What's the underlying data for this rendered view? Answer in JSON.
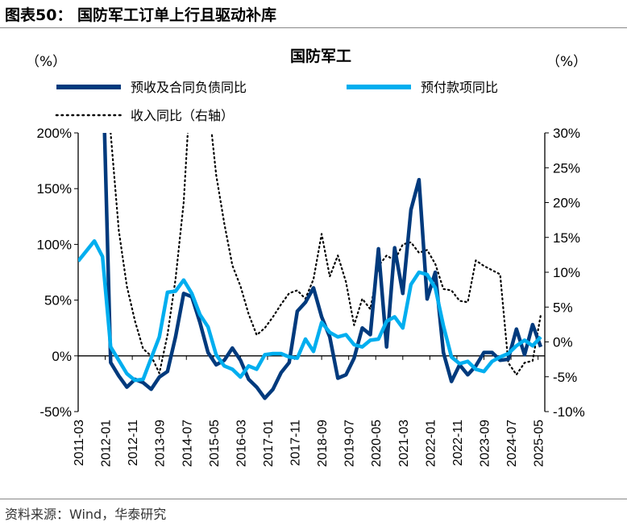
{
  "figure_title": "图表50：  国防军工订单上行且驱动补库",
  "source": "资料来源：Wind，华泰研究",
  "chart_data": {
    "type": "line",
    "title": "国防军工",
    "left_unit": "（%）",
    "right_unit": "（%）",
    "left_ylim": [
      -50,
      200
    ],
    "left_ticks": [
      "200%",
      "150%",
      "100%",
      "50%",
      "0%",
      "-50%"
    ],
    "left_tick_values": [
      200,
      150,
      100,
      50,
      0,
      -50
    ],
    "right_ylim": [
      -10,
      30
    ],
    "right_ticks": [
      "30%",
      "25%",
      "20%",
      "15%",
      "10%",
      "5%",
      "0%",
      "-5%",
      "-10%"
    ],
    "right_tick_values": [
      30,
      25,
      20,
      15,
      10,
      5,
      0,
      -5,
      -10
    ],
    "x_tick_labels": [
      "2011-03",
      "2012-01",
      "2012-11",
      "2013-09",
      "2014-07",
      "2015-05",
      "2016-03",
      "2017-01",
      "2017-11",
      "2018-09",
      "2019-07",
      "2020-05",
      "2021-03",
      "2022-01",
      "2022-11",
      "2023-09",
      "2024-07",
      "2025-05"
    ],
    "x": [
      "2011-03",
      "2011-06",
      "2011-09",
      "2011-12",
      "2012-03",
      "2012-06",
      "2012-09",
      "2012-12",
      "2013-03",
      "2013-06",
      "2013-09",
      "2013-12",
      "2014-03",
      "2014-06",
      "2014-09",
      "2014-12",
      "2015-03",
      "2015-06",
      "2015-09",
      "2015-12",
      "2016-03",
      "2016-06",
      "2016-09",
      "2016-12",
      "2017-03",
      "2017-06",
      "2017-09",
      "2017-12",
      "2018-03",
      "2018-06",
      "2018-09",
      "2018-12",
      "2019-03",
      "2019-06",
      "2019-09",
      "2019-12",
      "2020-03",
      "2020-06",
      "2020-09",
      "2020-12",
      "2021-03",
      "2021-06",
      "2021-09",
      "2021-12",
      "2022-03",
      "2022-06",
      "2022-09",
      "2022-12",
      "2023-03",
      "2023-06",
      "2023-09",
      "2023-12",
      "2024-03",
      "2024-06",
      "2024-09",
      "2024-12",
      "2025-03",
      "2025-06"
    ],
    "series": [
      {
        "name": "预收及合同负债同比",
        "axis": "left",
        "color": "#003A7D",
        "style": "solid",
        "values": [
          null,
          null,
          null,
          270,
          -6,
          -18,
          -28,
          -21,
          -24,
          -30,
          -19,
          -14,
          17,
          56,
          53,
          30,
          3,
          -8,
          -4,
          7,
          -4,
          -21,
          -28,
          -38,
          -30,
          -15,
          -6,
          40,
          48,
          61,
          35,
          17,
          -20,
          -17,
          -2,
          25,
          19,
          96,
          8,
          97,
          56,
          131,
          158,
          51,
          75,
          3,
          -23,
          -8,
          -17,
          -9,
          3,
          3,
          -4,
          -3,
          24,
          1,
          28,
          8
        ]
      },
      {
        "name": "预付款项同比",
        "axis": "left",
        "color": "#00AEEF",
        "style": "solid",
        "values": [
          85,
          94,
          103,
          89,
          8,
          -4,
          -16,
          -22,
          -21,
          -2,
          17,
          57,
          58,
          68,
          56,
          37,
          26,
          1,
          -9,
          -12,
          -19,
          -9,
          -12,
          1,
          2,
          2,
          -1,
          -2,
          15,
          4,
          30,
          21,
          17,
          19,
          10,
          8,
          14,
          15,
          31,
          35,
          25,
          64,
          75,
          73,
          61,
          27,
          -1,
          -7,
          -5,
          -12,
          -14,
          -5,
          -1,
          2,
          9,
          14,
          9,
          17
        ]
      },
      {
        "name": "收入同比（右轴）",
        "axis": "right",
        "color": "#000000",
        "style": "dotted",
        "values": [
          null,
          null,
          null,
          35,
          30,
          16,
          8,
          3,
          -1,
          -2,
          -4.5,
          1,
          9,
          20,
          40,
          45,
          35,
          24,
          17,
          11,
          8,
          4,
          1,
          2,
          3.6,
          5.4,
          7,
          7.4,
          6.2,
          9,
          15.5,
          9.4,
          12.4,
          8.6,
          2.4,
          6.2,
          4.7,
          10.9,
          12.4,
          11.7,
          14,
          14.3,
          12.8,
          13.2,
          11.2,
          7.6,
          7.4,
          5.9,
          5.7,
          11.7,
          10.9,
          10.3,
          9.7,
          -3,
          -4.7,
          -3,
          -2.7,
          3.9
        ]
      }
    ],
    "legend_placement": "top"
  }
}
